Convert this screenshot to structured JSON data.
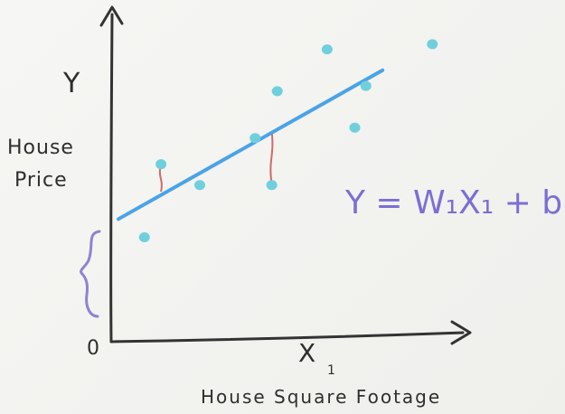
{
  "axes": {
    "y_label": "Y",
    "x_label": "X",
    "x_subscript": "1",
    "origin_label": "0"
  },
  "labels": {
    "y_title_line1": "House",
    "y_title_line2": "Price",
    "x_title": "House Square Footage"
  },
  "equation": {
    "text": "Y = W₁X₁ + b"
  },
  "chart_data": {
    "type": "scatter",
    "title": "",
    "xlabel": "House Square Footage",
    "ylabel": "House Price",
    "points": [
      {
        "x": 0.6,
        "y": 2.0
      },
      {
        "x": 0.9,
        "y": 3.4
      },
      {
        "x": 1.6,
        "y": 3.0
      },
      {
        "x": 2.6,
        "y": 3.9
      },
      {
        "x": 2.9,
        "y": 3.0
      },
      {
        "x": 3.0,
        "y": 4.8
      },
      {
        "x": 3.9,
        "y": 5.6
      },
      {
        "x": 4.4,
        "y": 4.1
      },
      {
        "x": 4.6,
        "y": 4.9
      },
      {
        "x": 5.8,
        "y": 5.7
      }
    ],
    "fit_line": {
      "x": [
        0,
        4.9
      ],
      "y": [
        2.35,
        5.2
      ]
    },
    "xlim": [
      0,
      6.4
    ],
    "ylim": [
      0,
      6.2
    ],
    "point_color": "#6fd0dc",
    "line_color": "#4aa3e6",
    "residual_color": "#d06a6a"
  }
}
